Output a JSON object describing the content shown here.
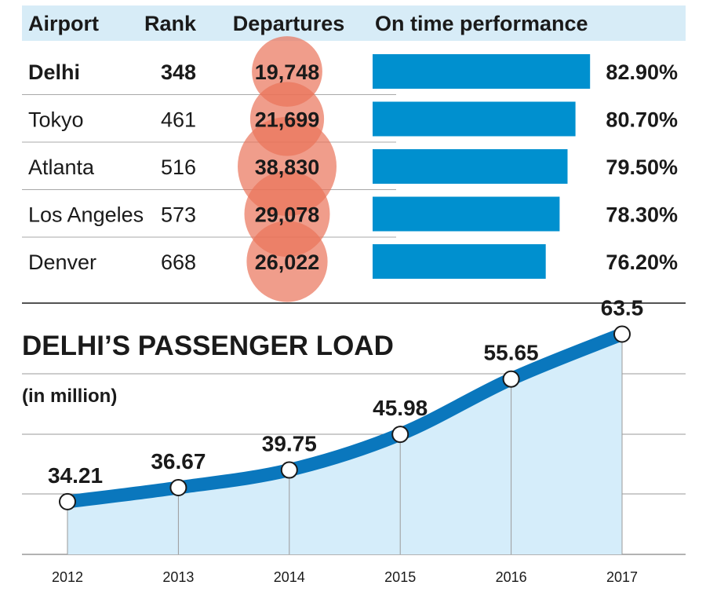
{
  "colors": {
    "header_bg": "#d7ecf7",
    "bar": "#0090cf",
    "bubble": "#ea735a",
    "line": "#0a77bd",
    "area": "#d5edfa",
    "grid": "#9a9a9a",
    "text": "#1a1a1a"
  },
  "table": {
    "headers": [
      "Airport",
      "Rank",
      "Departures",
      "On time performance"
    ],
    "rows": [
      {
        "airport": "Delhi",
        "rank": "348",
        "departures": "19,748",
        "otp": "82.90%",
        "highlight": true
      },
      {
        "airport": "Tokyo",
        "rank": "461",
        "departures": "21,699",
        "otp": "80.70%",
        "highlight": false
      },
      {
        "airport": "Atlanta",
        "rank": "516",
        "departures": "38,830",
        "otp": "79.50%",
        "highlight": false
      },
      {
        "airport": "Los Angeles",
        "rank": "573",
        "departures": "29,078",
        "otp": "78.30%",
        "highlight": false
      },
      {
        "airport": "Denver",
        "rank": "668",
        "departures": "26,022",
        "otp": "76.20%",
        "highlight": false
      }
    ]
  },
  "chart_data": [
    {
      "type": "table",
      "columns": [
        "Airport",
        "Rank",
        "Departures",
        "On time performance"
      ],
      "rows": [
        [
          "Delhi",
          348,
          19748,
          82.9
        ],
        [
          "Tokyo",
          461,
          21699,
          80.7
        ],
        [
          "Atlanta",
          516,
          38830,
          79.5
        ],
        [
          "Los Angeles",
          573,
          29078,
          78.3
        ],
        [
          "Denver",
          668,
          26022,
          76.2
        ]
      ],
      "departures": [
        19748,
        21699,
        38830,
        29078,
        26022
      ],
      "on_time_performance": [
        82.9,
        80.7,
        79.5,
        78.3,
        76.2
      ],
      "bar_axis_min": 50,
      "bar_axis_max": 83
    },
    {
      "type": "area",
      "title": "DELHI’S PASSENGER LOAD",
      "subtitle": "(in million)",
      "categories": [
        "2012",
        "2013",
        "2014",
        "2015",
        "2016",
        "2017"
      ],
      "values": [
        34.21,
        36.67,
        39.75,
        45.98,
        55.65,
        63.5
      ],
      "value_labels": [
        "34.21",
        "36.67",
        "39.75",
        "45.98",
        "55.65",
        "63.5"
      ],
      "ylim": [
        25,
        67
      ],
      "grid": true
    }
  ]
}
